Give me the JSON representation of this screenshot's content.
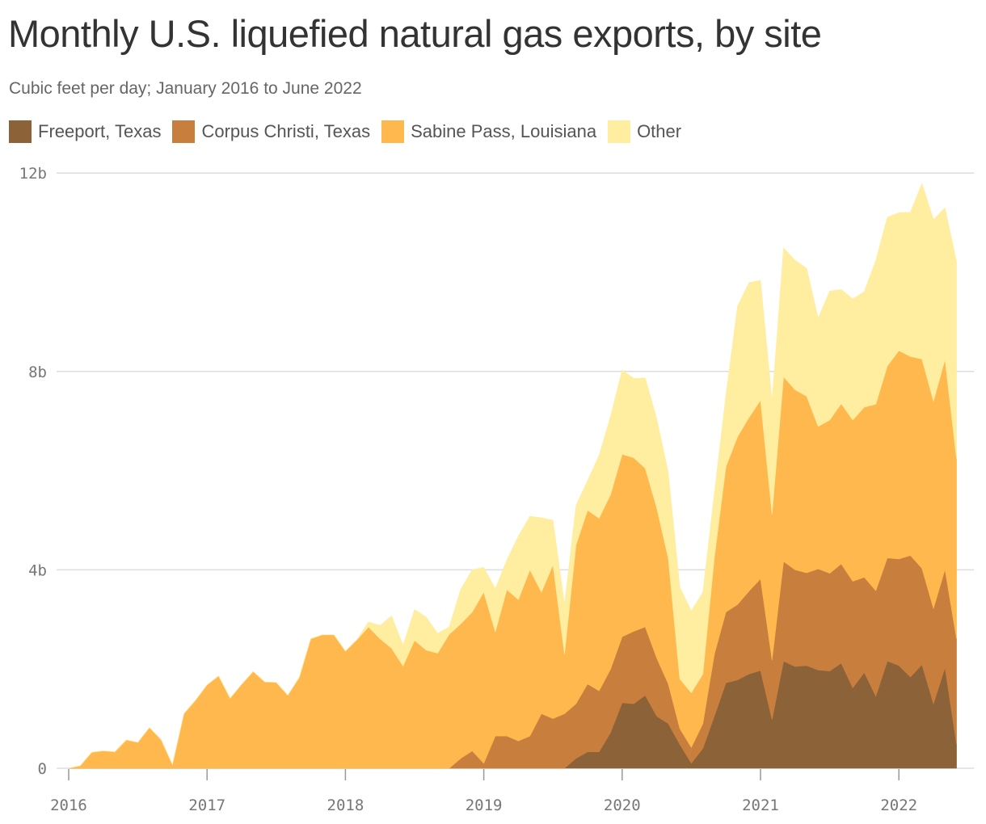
{
  "title": "Monthly U.S. liquefied natural gas exports, by site",
  "subtitle": "Cubic feet per day; January 2016 to June 2022",
  "chart_data": {
    "type": "area",
    "stacked": true,
    "title": "Monthly U.S. liquefied natural gas exports, by site",
    "subtitle": "Cubic feet per day; January 2016 to June 2022",
    "xlabel": "",
    "ylabel": "",
    "x_range": [
      "2016-01",
      "2022-06"
    ],
    "ylim": [
      0,
      12
    ],
    "y_unit": "billion cubic feet per day",
    "y_ticks": [
      {
        "value": 0,
        "label": "0"
      },
      {
        "value": 4,
        "label": "4b"
      },
      {
        "value": 8,
        "label": "8b"
      },
      {
        "value": 12,
        "label": "12b"
      }
    ],
    "x_ticks": [
      "2016",
      "2017",
      "2018",
      "2019",
      "2020",
      "2021",
      "2022"
    ],
    "grid": "horizontal",
    "legend_position": "top-left",
    "x": [
      "2016-01",
      "2016-02",
      "2016-03",
      "2016-04",
      "2016-05",
      "2016-06",
      "2016-07",
      "2016-08",
      "2016-09",
      "2016-10",
      "2016-11",
      "2016-12",
      "2017-01",
      "2017-02",
      "2017-03",
      "2017-04",
      "2017-05",
      "2017-06",
      "2017-07",
      "2017-08",
      "2017-09",
      "2017-10",
      "2017-11",
      "2017-12",
      "2018-01",
      "2018-02",
      "2018-03",
      "2018-04",
      "2018-05",
      "2018-06",
      "2018-07",
      "2018-08",
      "2018-09",
      "2018-10",
      "2018-11",
      "2018-12",
      "2019-01",
      "2019-02",
      "2019-03",
      "2019-04",
      "2019-05",
      "2019-06",
      "2019-07",
      "2019-08",
      "2019-09",
      "2019-10",
      "2019-11",
      "2019-12",
      "2020-01",
      "2020-02",
      "2020-03",
      "2020-04",
      "2020-05",
      "2020-06",
      "2020-07",
      "2020-08",
      "2020-09",
      "2020-10",
      "2020-11",
      "2020-12",
      "2021-01",
      "2021-02",
      "2021-03",
      "2021-04",
      "2021-05",
      "2021-06",
      "2021-07",
      "2021-08",
      "2021-09",
      "2021-10",
      "2021-11",
      "2021-12",
      "2022-01",
      "2022-02",
      "2022-03",
      "2022-04",
      "2022-05",
      "2022-06"
    ],
    "series": [
      {
        "name": "Freeport, Texas",
        "color": "#8c6239",
        "values": [
          0,
          0,
          0,
          0,
          0,
          0,
          0,
          0,
          0,
          0,
          0,
          0,
          0,
          0,
          0,
          0,
          0,
          0,
          0,
          0,
          0,
          0,
          0,
          0,
          0,
          0,
          0,
          0,
          0,
          0,
          0,
          0,
          0,
          0,
          0,
          0,
          0,
          0,
          0,
          0,
          0,
          0,
          0,
          0,
          0.2,
          0.33,
          0.33,
          0.72,
          1.32,
          1.3,
          1.47,
          1.05,
          0.9,
          0.48,
          0.1,
          0.4,
          1.05,
          1.72,
          1.78,
          1.9,
          1.97,
          0.98,
          2.16,
          2.05,
          2.07,
          1.98,
          1.96,
          2.12,
          1.62,
          1.93,
          1.45,
          2.16,
          2.07,
          1.84,
          2.09,
          1.3,
          2.03,
          0.48
        ]
      },
      {
        "name": "Corpus Christi, Texas",
        "color": "#c87f3e",
        "values": [
          0,
          0,
          0,
          0,
          0,
          0,
          0,
          0,
          0,
          0,
          0,
          0,
          0,
          0,
          0,
          0,
          0,
          0,
          0,
          0,
          0,
          0,
          0,
          0,
          0,
          0,
          0,
          0,
          0,
          0,
          0,
          0,
          0,
          0,
          0.2,
          0.35,
          0.1,
          0.65,
          0.65,
          0.55,
          0.65,
          1.1,
          1.0,
          1.1,
          1.1,
          1.37,
          1.23,
          1.28,
          1.33,
          1.46,
          1.38,
          1.17,
          0.8,
          0.32,
          0.32,
          0.5,
          1.25,
          1.43,
          1.52,
          1.67,
          1.85,
          1.2,
          2.01,
          1.95,
          1.87,
          2.04,
          1.97,
          2.0,
          2.15,
          1.92,
          2.13,
          2.08,
          2.15,
          2.45,
          1.94,
          1.92,
          1.98,
          2.13
        ]
      },
      {
        "name": "Sabine Pass, Louisiana",
        "color": "#ffb84d",
        "values": [
          0,
          0.05,
          0.32,
          0.35,
          0.33,
          0.57,
          0.52,
          0.82,
          0.58,
          0.07,
          1.1,
          1.37,
          1.68,
          1.86,
          1.41,
          1.69,
          1.95,
          1.74,
          1.73,
          1.47,
          1.83,
          2.61,
          2.69,
          2.69,
          2.36,
          2.59,
          2.85,
          2.61,
          2.42,
          2.06,
          2.58,
          2.38,
          2.32,
          2.7,
          2.71,
          2.8,
          3.45,
          2.1,
          2.95,
          2.85,
          3.35,
          2.45,
          3.1,
          1.2,
          3.2,
          3.5,
          3.48,
          3.52,
          3.68,
          3.5,
          3.2,
          3.03,
          2.53,
          1.0,
          1.1,
          1.0,
          1.95,
          2.93,
          3.38,
          3.5,
          3.6,
          2.94,
          3.72,
          3.63,
          3.56,
          2.87,
          3.09,
          3.23,
          3.25,
          3.43,
          3.76,
          3.87,
          4.2,
          4.01,
          4.22,
          4.18,
          4.23,
          3.63
        ]
      },
      {
        "name": "Other",
        "color": "#ffeda0",
        "values": [
          0,
          0,
          0,
          0,
          0,
          0,
          0,
          0,
          0,
          0,
          0,
          0,
          0,
          0,
          0,
          0,
          0,
          0,
          0,
          0,
          0,
          0,
          0,
          0,
          0,
          0,
          0.1,
          0.27,
          0.65,
          0.42,
          0.62,
          0.67,
          0.4,
          0.15,
          0.7,
          0.85,
          0.5,
          0.87,
          0.6,
          1.28,
          1.08,
          1.5,
          0.9,
          1.0,
          0.8,
          0.6,
          1.27,
          1.58,
          1.7,
          1.6,
          1.82,
          1.8,
          1.73,
          1.85,
          1.65,
          1.65,
          1.3,
          1.44,
          2.63,
          2.72,
          2.42,
          2.28,
          2.6,
          2.61,
          2.58,
          2.18,
          2.6,
          2.3,
          2.44,
          2.33,
          2.9,
          3.0,
          2.78,
          2.91,
          3.54,
          3.66,
          3.06,
          3.97
        ]
      }
    ]
  }
}
